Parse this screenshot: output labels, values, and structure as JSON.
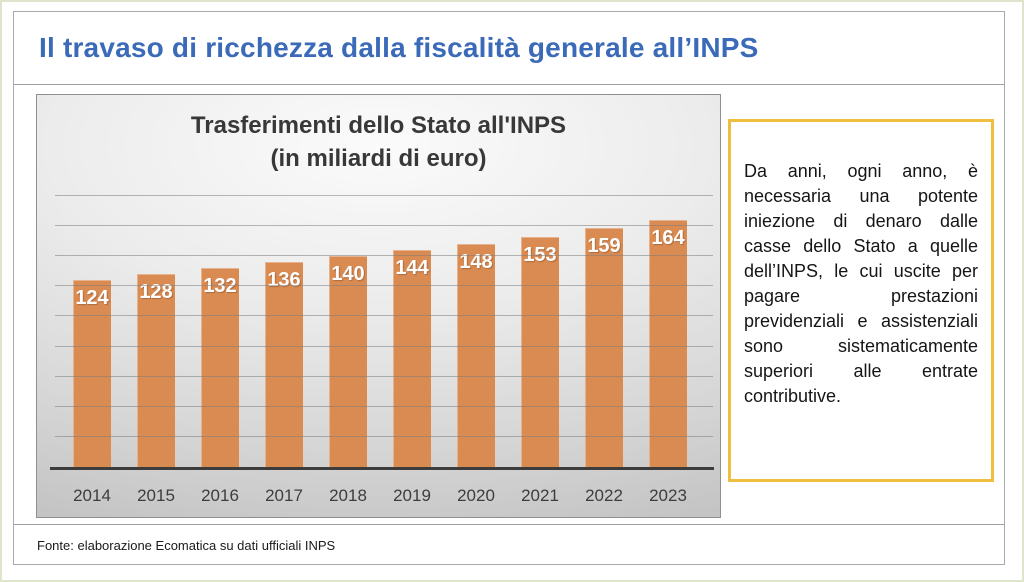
{
  "page": {
    "title": "Il travaso di ricchezza dalla fiscalità generale all’INPS",
    "footer": "Fonte: elaborazione Ecomatica su dati ufficiali INPS"
  },
  "chart_data": {
    "type": "bar",
    "title": "Trasferimenti dello Stato all'INPS",
    "subtitle": "(in miliardi di euro)",
    "categories": [
      "2014",
      "2015",
      "2016",
      "2017",
      "2018",
      "2019",
      "2020",
      "2021",
      "2022",
      "2023"
    ],
    "values": [
      124,
      128,
      132,
      136,
      140,
      144,
      148,
      153,
      159,
      164
    ],
    "xlabel": "",
    "ylabel": "",
    "ylim": [
      0,
      180
    ],
    "gridline_step": 20,
    "grid": true,
    "legend_position": "none",
    "y_axis_labels_visible": false,
    "value_labels": "inside-top"
  },
  "note": {
    "text": "Da anni, ogni anno, è necessaria una potente iniezione di denaro dalle casse dello Stato a quelle dell’INPS, le cui uscite per pagare prestazioni previdenziali e assistenziali sono sistematicamente superiori alle entrate contributive."
  },
  "colors": {
    "title_blue": "#3a6ab8",
    "bar_orange": "#d98b52",
    "bar_label_white": "#ffffff",
    "note_border_gold": "#eebe3e",
    "chart_border_gray": "#8f8f8f",
    "outer_border_green": "#dfe5cc"
  }
}
